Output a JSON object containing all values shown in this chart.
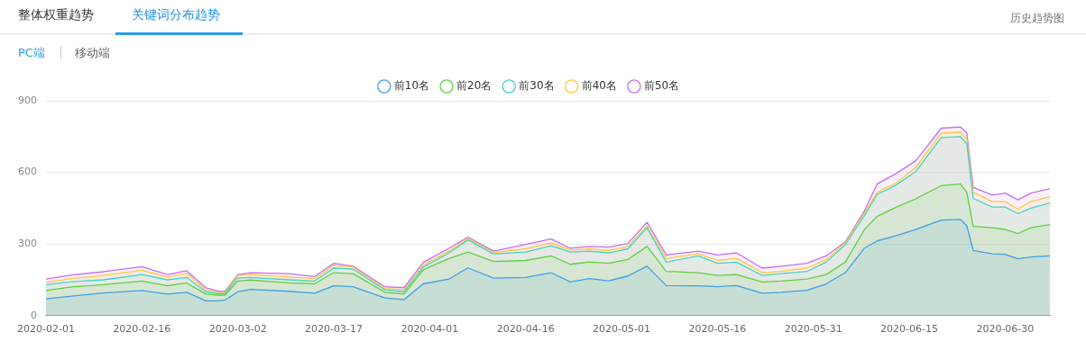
{
  "chart_data": {
    "type": "area",
    "annotations": [
      "整体权重趋势",
      "关键词分布趋势",
      "历史趋势图",
      "PC端",
      "移动端"
    ],
    "x": [
      "2020-02-01",
      "2020-02-05",
      "2020-02-10",
      "2020-02-16",
      "2020-02-20",
      "2020-02-23",
      "2020-02-26",
      "2020-02-28",
      "2020-02-29",
      "2020-03-02",
      "2020-03-04",
      "2020-03-10",
      "2020-03-14",
      "2020-03-17",
      "2020-03-20",
      "2020-03-25",
      "2020-03-28",
      "2020-03-31",
      "2020-04-04",
      "2020-04-07",
      "2020-04-11",
      "2020-04-16",
      "2020-04-20",
      "2020-04-23",
      "2020-04-26",
      "2020-04-29",
      "2020-05-02",
      "2020-05-05",
      "2020-05-08",
      "2020-05-13",
      "2020-05-16",
      "2020-05-19",
      "2020-05-23",
      "2020-05-26",
      "2020-05-30",
      "2020-06-02",
      "2020-06-05",
      "2020-06-08",
      "2020-06-10",
      "2020-06-13",
      "2020-06-16",
      "2020-06-20",
      "2020-06-23",
      "2020-06-24",
      "2020-06-25",
      "2020-06-28",
      "2020-06-30",
      "2020-07-02",
      "2020-07-04",
      "2020-07-07"
    ],
    "series": [
      {
        "name": "前10名",
        "color": "#3ba1e8",
        "values": [
          70,
          82,
          95,
          105,
          90,
          98,
          62,
          62,
          65,
          100,
          110,
          102,
          94,
          125,
          121,
          74,
          67,
          133,
          153,
          200,
          157,
          160,
          180,
          141,
          155,
          146,
          166,
          207,
          126,
          125,
          121,
          126,
          94,
          98,
          106,
          133,
          180,
          283,
          313,
          335,
          361,
          400,
          403,
          376,
          273,
          259,
          257,
          238,
          246,
          250
        ]
      },
      {
        "name": "前20名",
        "color": "#5fd03f",
        "values": [
          105,
          120,
          130,
          145,
          125,
          137,
          90,
          86,
          86,
          145,
          149,
          137,
          133,
          180,
          176,
          98,
          90,
          192,
          239,
          266,
          227,
          231,
          250,
          215,
          225,
          219,
          235,
          290,
          185,
          180,
          168,
          172,
          141,
          145,
          153,
          172,
          224,
          361,
          416,
          455,
          489,
          544,
          552,
          517,
          374,
          368,
          361,
          344,
          368,
          381
        ]
      },
      {
        "name": "前30名",
        "color": "#3fd6c4",
        "values": [
          130,
          142,
          150,
          172,
          150,
          160,
          100,
          92,
          92,
          158,
          160,
          150,
          145,
          200,
          195,
          108,
          100,
          203,
          262,
          317,
          258,
          266,
          293,
          266,
          270,
          263,
          280,
          368,
          224,
          250,
          219,
          224,
          168,
          176,
          185,
          224,
          297,
          420,
          508,
          548,
          603,
          746,
          750,
          720,
          491,
          455,
          455,
          427,
          450,
          472
        ]
      },
      {
        "name": "前40名",
        "color": "#ffc83d",
        "values": [
          140,
          155,
          168,
          190,
          162,
          178,
          108,
          97,
          97,
          168,
          172,
          162,
          155,
          211,
          203,
          114,
          108,
          211,
          270,
          323,
          264,
          280,
          305,
          275,
          280,
          272,
          290,
          375,
          239,
          260,
          231,
          240,
          180,
          185,
          200,
          235,
          305,
          430,
          517,
          557,
          620,
          765,
          768,
          740,
          517,
          478,
          478,
          446,
          478,
          498
        ]
      },
      {
        "name": "前50名",
        "color": "#c46ef0",
        "values": [
          153,
          170,
          184,
          205,
          172,
          188,
          117,
          102,
          102,
          172,
          180,
          176,
          164,
          219,
          207,
          121,
          117,
          223,
          282,
          329,
          270,
          298,
          321,
          282,
          290,
          287,
          302,
          391,
          254,
          270,
          254,
          263,
          199,
          207,
          219,
          250,
          309,
          439,
          552,
          596,
          648,
          785,
          790,
          765,
          537,
          505,
          513,
          485,
          513,
          532
        ]
      }
    ],
    "xlim": [
      "2020-02-01",
      "2020-07-07"
    ],
    "xticks": [
      "2020-02-01",
      "2020-02-16",
      "2020-03-02",
      "2020-03-17",
      "2020-04-01",
      "2020-04-16",
      "2020-05-01",
      "2020-05-16",
      "2020-05-31",
      "2020-06-15",
      "2020-06-30"
    ],
    "ylim": [
      0,
      900
    ],
    "yticks": [
      0,
      300,
      600,
      900
    ],
    "grid": "y",
    "legend": "top"
  }
}
